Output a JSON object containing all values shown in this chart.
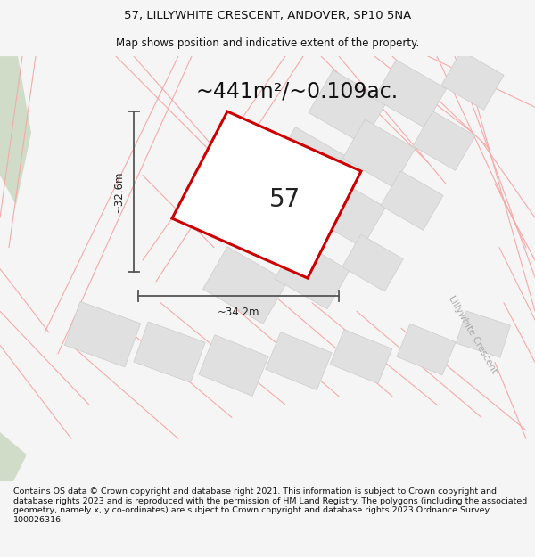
{
  "title_line1": "57, LILLYWHITE CRESCENT, ANDOVER, SP10 5NA",
  "title_line2": "Map shows position and indicative extent of the property.",
  "area_text": "~441m²/~0.109ac.",
  "number_label": "57",
  "dim_vertical": "~32.6m",
  "dim_horizontal": "~34.2m",
  "footer_text": "Contains OS data © Crown copyright and database right 2021. This information is subject to Crown copyright and database rights 2023 and is reproduced with the permission of HM Land Registry. The polygons (including the associated geometry, namely x, y co-ordinates) are subject to Crown copyright and database rights 2023 Ordnance Survey 100026316.",
  "bg_color": "#f5f5f5",
  "map_bg": "#ffffff",
  "plot_outline_color": "#cc0000",
  "road_color": "#f5aaaa",
  "road_lw": 0.8,
  "block_color": "#e0e0e0",
  "block_outline": "#cccccc",
  "block_lw": 0.5,
  "dim_line_color": "#555555",
  "road_label_color": "#aaaaaa",
  "green_color": "#d0dcc8",
  "title_fontsize": 9.5,
  "subtitle_fontsize": 8.5,
  "area_fontsize": 17,
  "number_fontsize": 20,
  "dim_fontsize": 8.5,
  "footer_fontsize": 6.8
}
